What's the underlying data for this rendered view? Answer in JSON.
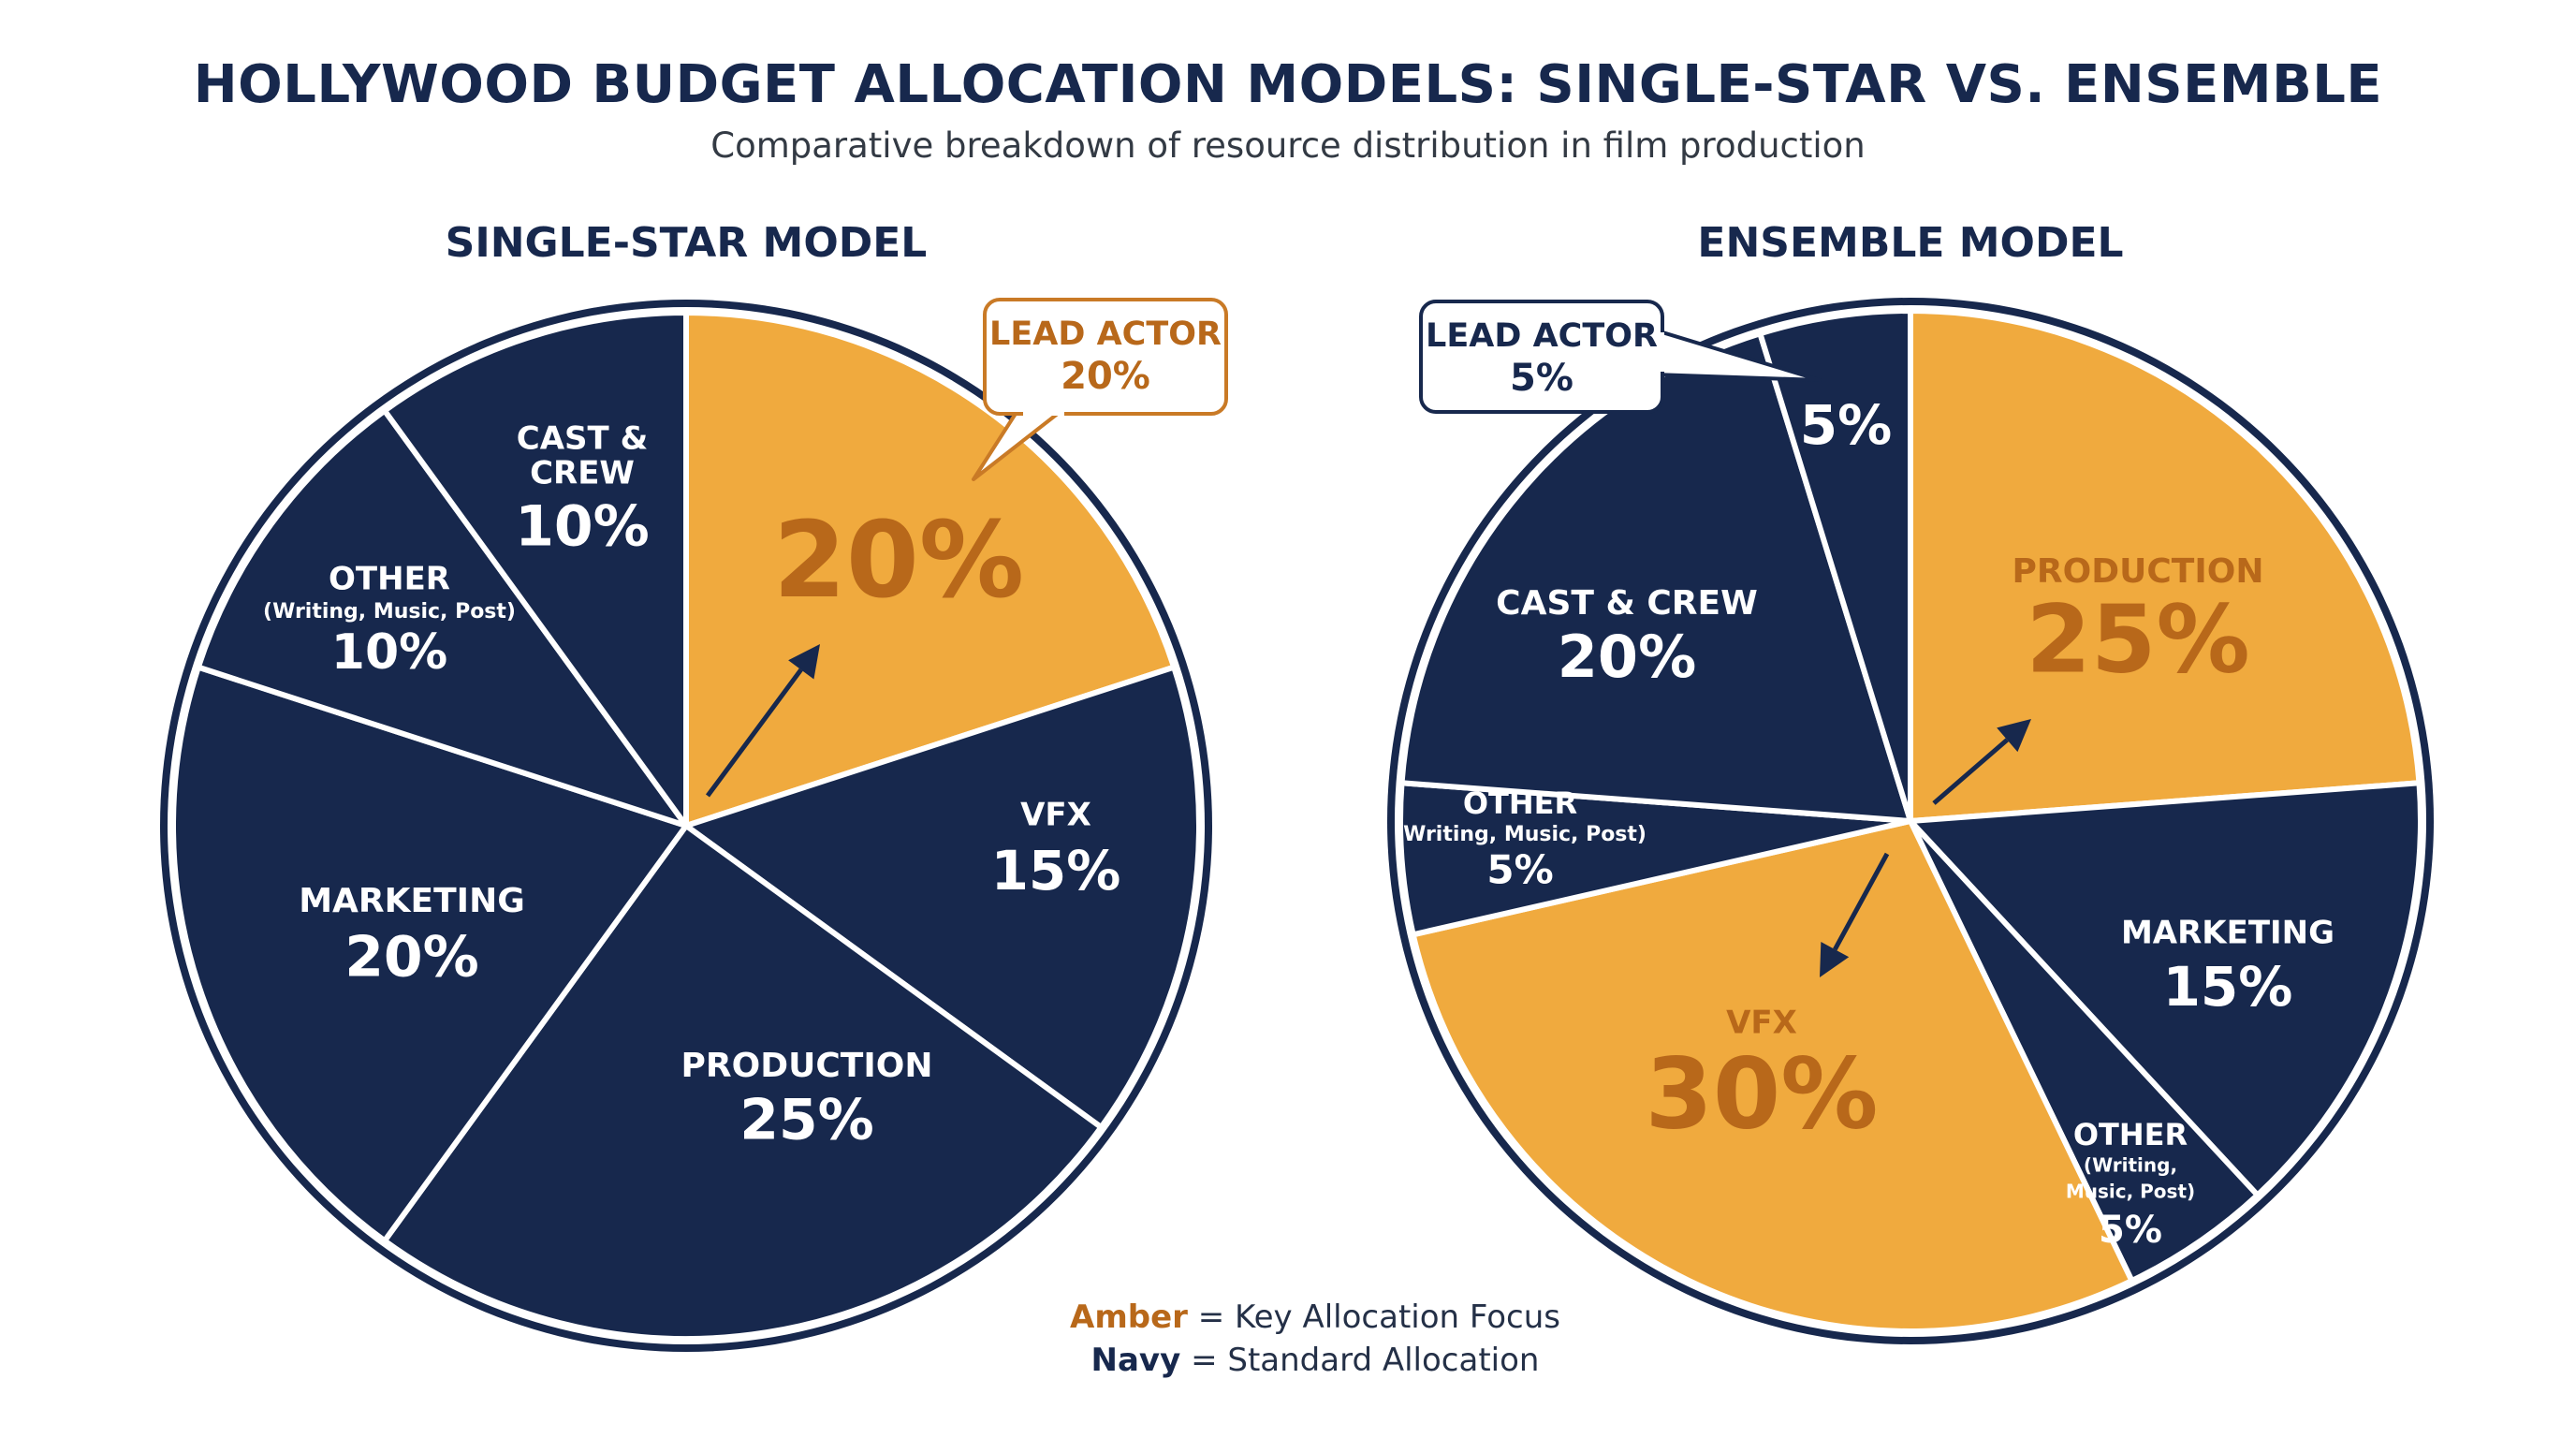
{
  "title": "HOLLYWOOD BUDGET ALLOCATION MODELS: SINGLE-STAR VS. ENSEMBLE",
  "subtitle": "Comparative breakdown of resource distribution in film production",
  "colors": {
    "navy": "#17284d",
    "amber": "#f0aa3e",
    "amber_text": "#b8681a",
    "white": "#ffffff"
  },
  "legend": {
    "amber_word": "Amber",
    "amber_text": " = Key Allocation Focus",
    "navy_word": "Navy",
    "navy_text": " = Standard Allocation"
  },
  "chart_data": [
    {
      "type": "pie",
      "title": "SINGLE-STAR MODEL",
      "slices": [
        {
          "label": "LEAD ACTOR",
          "value": 20,
          "highlight": true
        },
        {
          "label": "VFX",
          "value": 15,
          "highlight": false
        },
        {
          "label": "PRODUCTION",
          "value": 25,
          "highlight": false
        },
        {
          "label": "MARKETING",
          "value": 20,
          "highlight": false
        },
        {
          "label": "OTHER",
          "sublabel": "(Writing, Music, Post)",
          "value": 10,
          "highlight": false
        },
        {
          "label": "CAST & CREW",
          "value": 10,
          "highlight": false
        }
      ],
      "callout": {
        "label": "LEAD ACTOR",
        "value": "20%"
      }
    },
    {
      "type": "pie",
      "title": "ENSEMBLE MODEL",
      "slices": [
        {
          "label": "PRODUCTION",
          "value": 25,
          "highlight": true
        },
        {
          "label": "MARKETING",
          "value": 15,
          "highlight": false
        },
        {
          "label": "OTHER",
          "sublabel": "(Writing, Music, Post)",
          "value": 5,
          "highlight": false
        },
        {
          "label": "VFX",
          "value": 30,
          "highlight": true
        },
        {
          "label": "OTHER",
          "sublabel": "(Writing, Music, Post)",
          "value": 5,
          "highlight": false
        },
        {
          "label": "CAST & CREW",
          "value": 20,
          "highlight": false
        },
        {
          "label": "LEAD ACTOR",
          "value": 5,
          "highlight": false
        }
      ],
      "callout": {
        "label": "LEAD ACTOR",
        "value": "5%"
      }
    }
  ]
}
